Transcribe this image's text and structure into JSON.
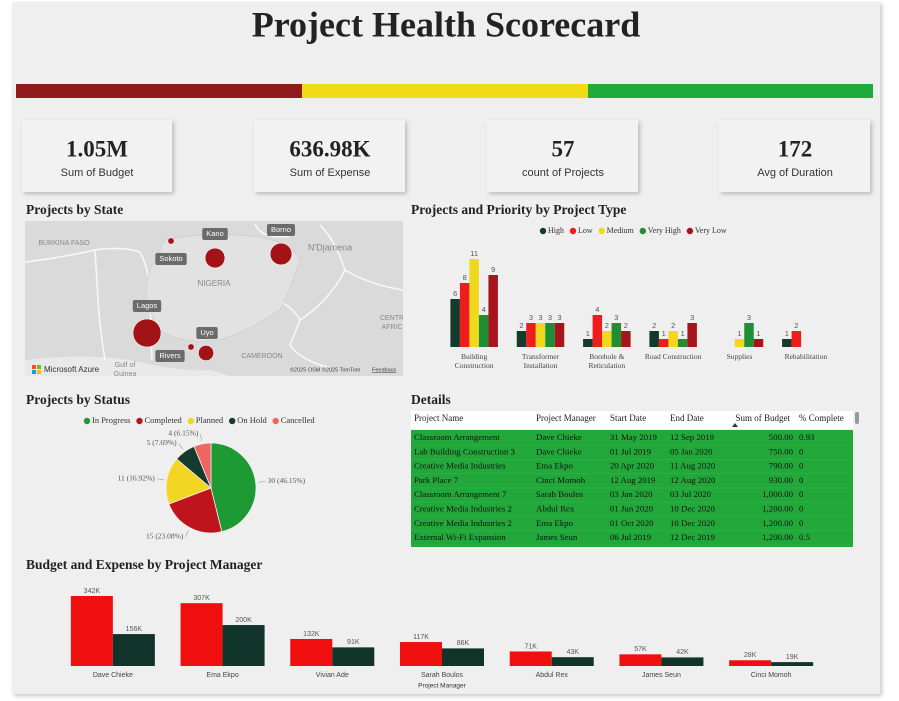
{
  "header": {
    "title": "Project Health Scorecard"
  },
  "kpis": [
    {
      "value": "1.05M",
      "label": "Sum of Budget"
    },
    {
      "value": "636.98K",
      "label": "Sum of Expense"
    },
    {
      "value": "57",
      "label": "count of Projects"
    },
    {
      "value": "172",
      "label": "Avg of Duration"
    }
  ],
  "map": {
    "title": "Projects by State",
    "points": [
      {
        "label": "Sokoto",
        "value": 1
      },
      {
        "label": "Kano",
        "value": 10
      },
      {
        "label": "Borno",
        "value": 12
      },
      {
        "label": "Lagos",
        "value": 20
      },
      {
        "label": "Uyo",
        "value": 6
      },
      {
        "label": "Rivers",
        "value": 1
      }
    ],
    "places": [
      "BURKINA FASO",
      "NIGERIA",
      "N'Djamena",
      "CAMEROON",
      "CENTR",
      "AFRIC",
      "Gulf of",
      "Guinea"
    ],
    "attribution": "Microsoft Azure",
    "credits": "©2025 OSM ©2025 TomTom",
    "feedback": "Feedback"
  },
  "chart_data": [
    {
      "type": "bar",
      "title": "Projects and Priority by Project Type",
      "categories": [
        "Building Construction",
        "Transformer Installation",
        "Borehole & Reticulation",
        "Road Construction",
        "Supplies",
        "Rehabilitation"
      ],
      "series": [
        {
          "name": "High",
          "color": "#143a2c",
          "values": [
            6,
            2,
            1,
            2,
            null,
            1
          ]
        },
        {
          "name": "Low",
          "color": "#ee1c1c",
          "values": [
            8,
            3,
            4,
            1,
            null,
            2
          ]
        },
        {
          "name": "Medium",
          "color": "#f0d81a",
          "values": [
            11,
            3,
            2,
            2,
            1,
            null
          ]
        },
        {
          "name": "Very High",
          "color": "#1f8f36",
          "values": [
            4,
            3,
            3,
            1,
            3,
            null
          ]
        },
        {
          "name": "Very Low",
          "color": "#a8141c",
          "values": [
            9,
            3,
            2,
            3,
            1,
            null
          ]
        }
      ]
    },
    {
      "type": "pie",
      "title": "Projects by Status",
      "categories": [
        "In Progress",
        "Completed",
        "Planned",
        "On Hold",
        "Cancelled"
      ],
      "values": [
        30,
        15,
        11,
        5,
        4
      ],
      "value_labels": [
        "30 (46.15%)",
        "15 (23.08%)",
        "11 (16.92%)",
        "5 (7.69%)",
        "4 (6.15%)"
      ],
      "colors": [
        "#1e9a34",
        "#c0141c",
        "#f2d623",
        "#163a2c",
        "#f06464"
      ]
    },
    {
      "type": "bar",
      "title": "Budget and Expense by Project Manager",
      "x_label": "Project Manager",
      "categories": [
        "Dave Chieke",
        "Ema Ekpo",
        "Vivian Ade",
        "Sarah Boulos",
        "Abdul Rex",
        "James Seun",
        "Cinci Momoh"
      ],
      "series": [
        {
          "color": "#f00f0f",
          "values": [
            342000,
            307000,
            132000,
            117000,
            71000,
            57000,
            28000
          ],
          "value_labels": [
            "342K",
            "307K",
            "132K",
            "117K",
            "71K",
            "57K",
            "28K"
          ]
        },
        {
          "color": "#10332a",
          "values": [
            156000,
            200000,
            91000,
            86000,
            43000,
            42000,
            19000
          ],
          "value_labels": [
            "156K",
            "200K",
            "91K",
            "86K",
            "43K",
            "42K",
            "19K"
          ]
        }
      ]
    }
  ],
  "table": {
    "title": "Details",
    "columns": [
      "Project Name",
      "Project Manager",
      "Start Date",
      "End Date",
      "Sum of Budget",
      "% Complete"
    ],
    "rows": [
      [
        "Classroom Arrangement",
        "Dave Chieke",
        "31 May 2019",
        "12 Sep 2019",
        "500.00",
        "0.93"
      ],
      [
        "Lab Building Construction 3",
        "Dave Chieke",
        "01 Jul 2019",
        "05 Jan 2020",
        "750.00",
        "0"
      ],
      [
        "Creative Media Industries",
        "Ema Ekpo",
        "20 Apr 2020",
        "11 Aug 2020",
        "790.00",
        "0"
      ],
      [
        "Park Place 7",
        "Cinci Momoh",
        "12 Aug 2019",
        "12 Aug 2020",
        "930.00",
        "0"
      ],
      [
        "Classroom Arrangement 7",
        "Sarah Boulos",
        "03 Jan 2020",
        "03 Jul 2020",
        "1,000.00",
        "0"
      ],
      [
        "Creative Media Industries 2",
        "Abdul Rex",
        "01 Jun 2020",
        "10 Dec 2020",
        "1,200.00",
        "0"
      ],
      [
        "Creative Media Industries 2",
        "Ema Ekpo",
        "01 Oct 2020",
        "10 Dec 2020",
        "1,200.00",
        "0"
      ],
      [
        "External Wi-Fi Expansion",
        "James Seun",
        "06 Jul 2019",
        "12 Dec 2019",
        "1,200.00",
        "0.5"
      ]
    ]
  }
}
